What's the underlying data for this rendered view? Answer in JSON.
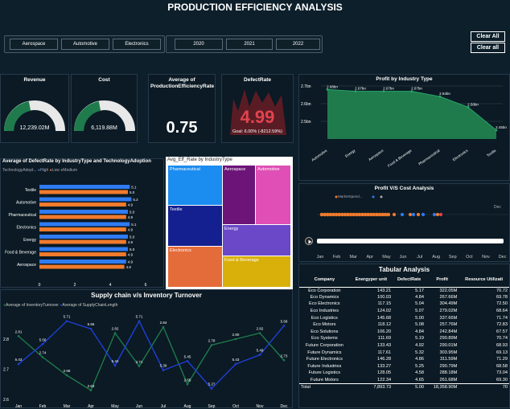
{
  "title": "PRODUCTION EFFICIENCY ANALYSIS",
  "industry_slicer": [
    "Aerospace",
    "Automotive",
    "Electronics"
  ],
  "year_slicer": [
    "2020",
    "2021",
    "2022"
  ],
  "clear_buttons": [
    "Clear All",
    "Clear all"
  ],
  "kpis": {
    "revenue": {
      "title": "Revenue",
      "value": "12,239.02M"
    },
    "cost": {
      "title": "Cost",
      "value": "6,119.88M"
    },
    "avg_eff": {
      "title": "Average of ProductionEfficiencyRate",
      "value": "0.75"
    },
    "defect": {
      "title": "DefectRate",
      "value": "4.99",
      "goal": "Goal: 6.00% (-8212.59%)"
    }
  },
  "colors": {
    "accent_green": "#1f7a4c",
    "bar_blue": "#2f7bf2",
    "bar_orange": "#f07a2c",
    "defect_red": "#e2434f"
  },
  "defect_chart": {
    "title": "Average of DefectRate by IndustryType and TechnologyAdoption",
    "legend_title": "TechnologyAdopt...",
    "legend": [
      "High",
      "Low",
      "Medium"
    ],
    "categories": [
      "Textile",
      "Automotive",
      "Pharmaceutical",
      "Electronics",
      "Energy",
      "Food & Beverage",
      "Aerospace"
    ],
    "blue_values": [
      "5.1",
      "5.2",
      "5.0",
      "5.1",
      "5.0",
      "5.0",
      "4.9"
    ],
    "orange_values": [
      "5.0",
      "4.9",
      "4.9",
      "4.9",
      "4.9",
      "4.9",
      "4.8"
    ],
    "x_ticks": [
      "0",
      "2",
      "4",
      "6"
    ]
  },
  "chart_data": [
    {
      "type": "bar",
      "title": "Average of DefectRate by IndustryType and TechnologyAdoption",
      "categories": [
        "Textile",
        "Automotive",
        "Pharmaceutical",
        "Electronics",
        "Energy",
        "Food & Beverage",
        "Aerospace"
      ],
      "series": [
        {
          "name": "High",
          "values": [
            5.1,
            5.2,
            5.0,
            5.1,
            5.0,
            5.0,
            4.9
          ]
        },
        {
          "name": "Low",
          "values": [
            5.0,
            4.9,
            4.9,
            4.9,
            4.9,
            4.9,
            4.8
          ]
        }
      ],
      "xlim": [
        0,
        6
      ]
    },
    {
      "type": "area",
      "title": "Profit by Industry Type",
      "categories": [
        "Automotive",
        "Energy",
        "Aerospace",
        "Food & Beverage",
        "Pharmaceutical",
        "Electronics",
        "Textile"
      ],
      "values": [
        2.68,
        2.67,
        2.67,
        2.67,
        2.64,
        2.58,
        2.45
      ],
      "labels": [
        "2.68bn",
        "2.67bn",
        "2.67bn",
        "2.67bn",
        "2.64bn",
        "2.58bn",
        "2.45bn"
      ],
      "ylim": [
        2.4,
        2.7
      ],
      "y_ticks": [
        "2.7bn",
        "2.6bn",
        "2.5bn"
      ]
    },
    {
      "type": "line",
      "title": "Supply chain v/s Inventory Turnover",
      "categories": [
        "Jan",
        "Feb",
        "Mar",
        "Apr",
        "May",
        "Jun",
        "Jul",
        "Aug",
        "Sep",
        "Oct",
        "Nov",
        "Dec"
      ],
      "series": [
        {
          "name": "Average of InventoryTurnover",
          "values": [
            2.81,
            2.74,
            2.68,
            2.63,
            2.82,
            2.71,
            2.84,
            2.65,
            2.78,
            2.8,
            2.82,
            2.73
          ]
        },
        {
          "name": "Average of SupplyChainLength",
          "values": [
            5.43,
            5.56,
            5.71,
            5.66,
            5.42,
            5.71,
            5.39,
            5.45,
            5.27,
            5.43,
            5.49,
            5.68
          ]
        }
      ],
      "y_ticks": [
        "2.8",
        "2.7",
        "2.6"
      ]
    }
  ],
  "treemap": {
    "title": "Avg_Eff_Rate by IndustryType",
    "cells": [
      "Pharmaceutical",
      "Aerospace",
      "Automotive",
      "Textile",
      "Energy",
      "Electronics",
      "Food & Beverage"
    ]
  },
  "profit_chart": {
    "title": "Profit by Industry Type",
    "y_ticks": [
      "2.7bn",
      "2.6bn",
      "2.5bn"
    ],
    "categories": [
      "Automotive",
      "Energy",
      "Aerospace",
      "Food & Beverage",
      "Pharmaceutical",
      "Electronics",
      "Textile"
    ],
    "labels": [
      "2.68bn",
      "2.67bn",
      "2.67bn",
      "2.67bn",
      "2.64bn",
      "2.58bn",
      "2.45bn"
    ]
  },
  "pvc_chart": {
    "title": "Profit V/S Cost Analysis",
    "legend_title": "MarketSpend...",
    "dec_label": "Dec",
    "months": [
      "Jan",
      "Feb",
      "Mar",
      "Apr",
      "May",
      "Jun",
      "Jul",
      "Aug",
      "Sep",
      "Oct",
      "Nov",
      "Dec"
    ]
  },
  "supply_chart": {
    "title": "Supply chain v/s Inventory Turnover",
    "legend": [
      "Average of InventoryTurnover",
      "Average of SupplyChainLength"
    ],
    "y_ticks": [
      "2.8",
      "2.7",
      "2.6"
    ],
    "months": [
      "Jan",
      "Feb",
      "Mar",
      "Apr",
      "May",
      "Jun",
      "Jul",
      "Aug",
      "Sep",
      "Oct",
      "Nov",
      "Dec"
    ],
    "green_labels": [
      "2.81",
      "2.74",
      "2.68",
      "2.63",
      "2.82",
      "2.71",
      "2.84",
      "2.65",
      "2.78",
      "2.80",
      "2.82",
      "2.73"
    ],
    "blue_labels": [
      "5.43",
      "5.56",
      "5.71",
      "5.66",
      "5.42",
      "5.71",
      "5.39",
      "5.45",
      "5.27",
      "5.43",
      "5.49",
      "5.68"
    ]
  },
  "table": {
    "title": "Tabular Analysis",
    "headers": [
      "Company",
      "Energyper unit",
      "DefectRate",
      "Profit",
      "Resource Utilizati"
    ],
    "rows": [
      [
        "Eco Corporation",
        "143.21",
        "5.17",
        "322.05M",
        "70.72"
      ],
      [
        "Eco Dynamics",
        "100.03",
        "4.84",
        "267.66M",
        "69.78"
      ],
      [
        "Eco Electronics",
        "117.15",
        "5.04",
        "304.49M",
        "72.50"
      ],
      [
        "Eco Industries",
        "124.02",
        "5.07",
        "279.02M",
        "68.64"
      ],
      [
        "Eco Logistics",
        "145.68",
        "5.00",
        "337.66M",
        "71.74"
      ],
      [
        "Eco Motors",
        "118.12",
        "5.08",
        "257.76M",
        "72.83"
      ],
      [
        "Eco Solutions",
        "106.20",
        "4.84",
        "242.84M",
        "67.57"
      ],
      [
        "Eco Systems",
        "111.69",
        "5.19",
        "290.89M",
        "70.74"
      ],
      [
        "Future Corporation",
        "133.43",
        "4.92",
        "290.01M",
        "68.93"
      ],
      [
        "Future Dynamics",
        "117.61",
        "5.32",
        "303.95M",
        "69.13"
      ],
      [
        "Future Electronics",
        "146.28",
        "4.86",
        "311.59M",
        "71.29"
      ],
      [
        "Future Industries",
        "133.27",
        "5.25",
        "290.79M",
        "68.58"
      ],
      [
        "Future Logistics",
        "128.05",
        "4.58",
        "288.18M",
        "73.04"
      ],
      [
        "Future Motors",
        "122.34",
        "4.65",
        "261.68M",
        "69.30"
      ]
    ],
    "total": [
      "Total",
      "7,893.73",
      "5.00",
      "18,358.90M",
      "70"
    ]
  }
}
